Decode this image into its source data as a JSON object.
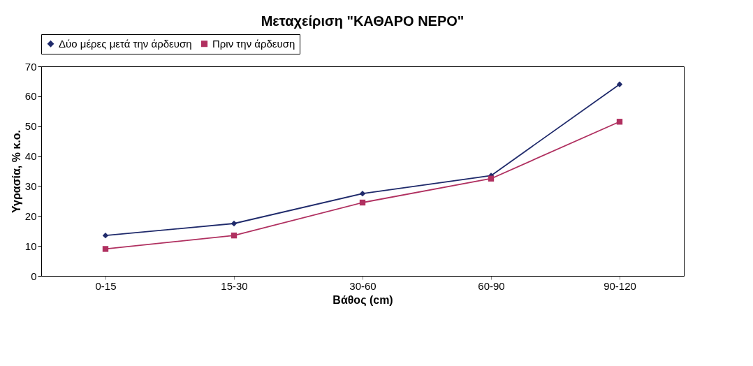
{
  "chart_data": {
    "type": "line",
    "title": "Μεταχείριση \"ΚΑΘΑΡΟ ΝΕΡΟ\"",
    "xlabel": "Βάθος (cm)",
    "ylabel": "Υγρασία, % κ.ο.",
    "categories": [
      "0-15",
      "15-30",
      "30-60",
      "60-90",
      "90-120"
    ],
    "series": [
      {
        "name": "Δύο μέρες μετά την άρδευση",
        "color": "#1f2a6b",
        "marker": "diamond",
        "values": [
          13.5,
          17.5,
          27.5,
          33.5,
          64
        ]
      },
      {
        "name": "Πριν την άρδευση",
        "color": "#b03060",
        "marker": "square",
        "values": [
          9,
          13.5,
          24.5,
          32.5,
          51.5
        ]
      }
    ],
    "ylim": [
      0,
      70
    ],
    "yticks": [
      0,
      10,
      20,
      30,
      40,
      50,
      60,
      70
    ],
    "grid": false,
    "legend": "top",
    "line_style": "solid"
  }
}
